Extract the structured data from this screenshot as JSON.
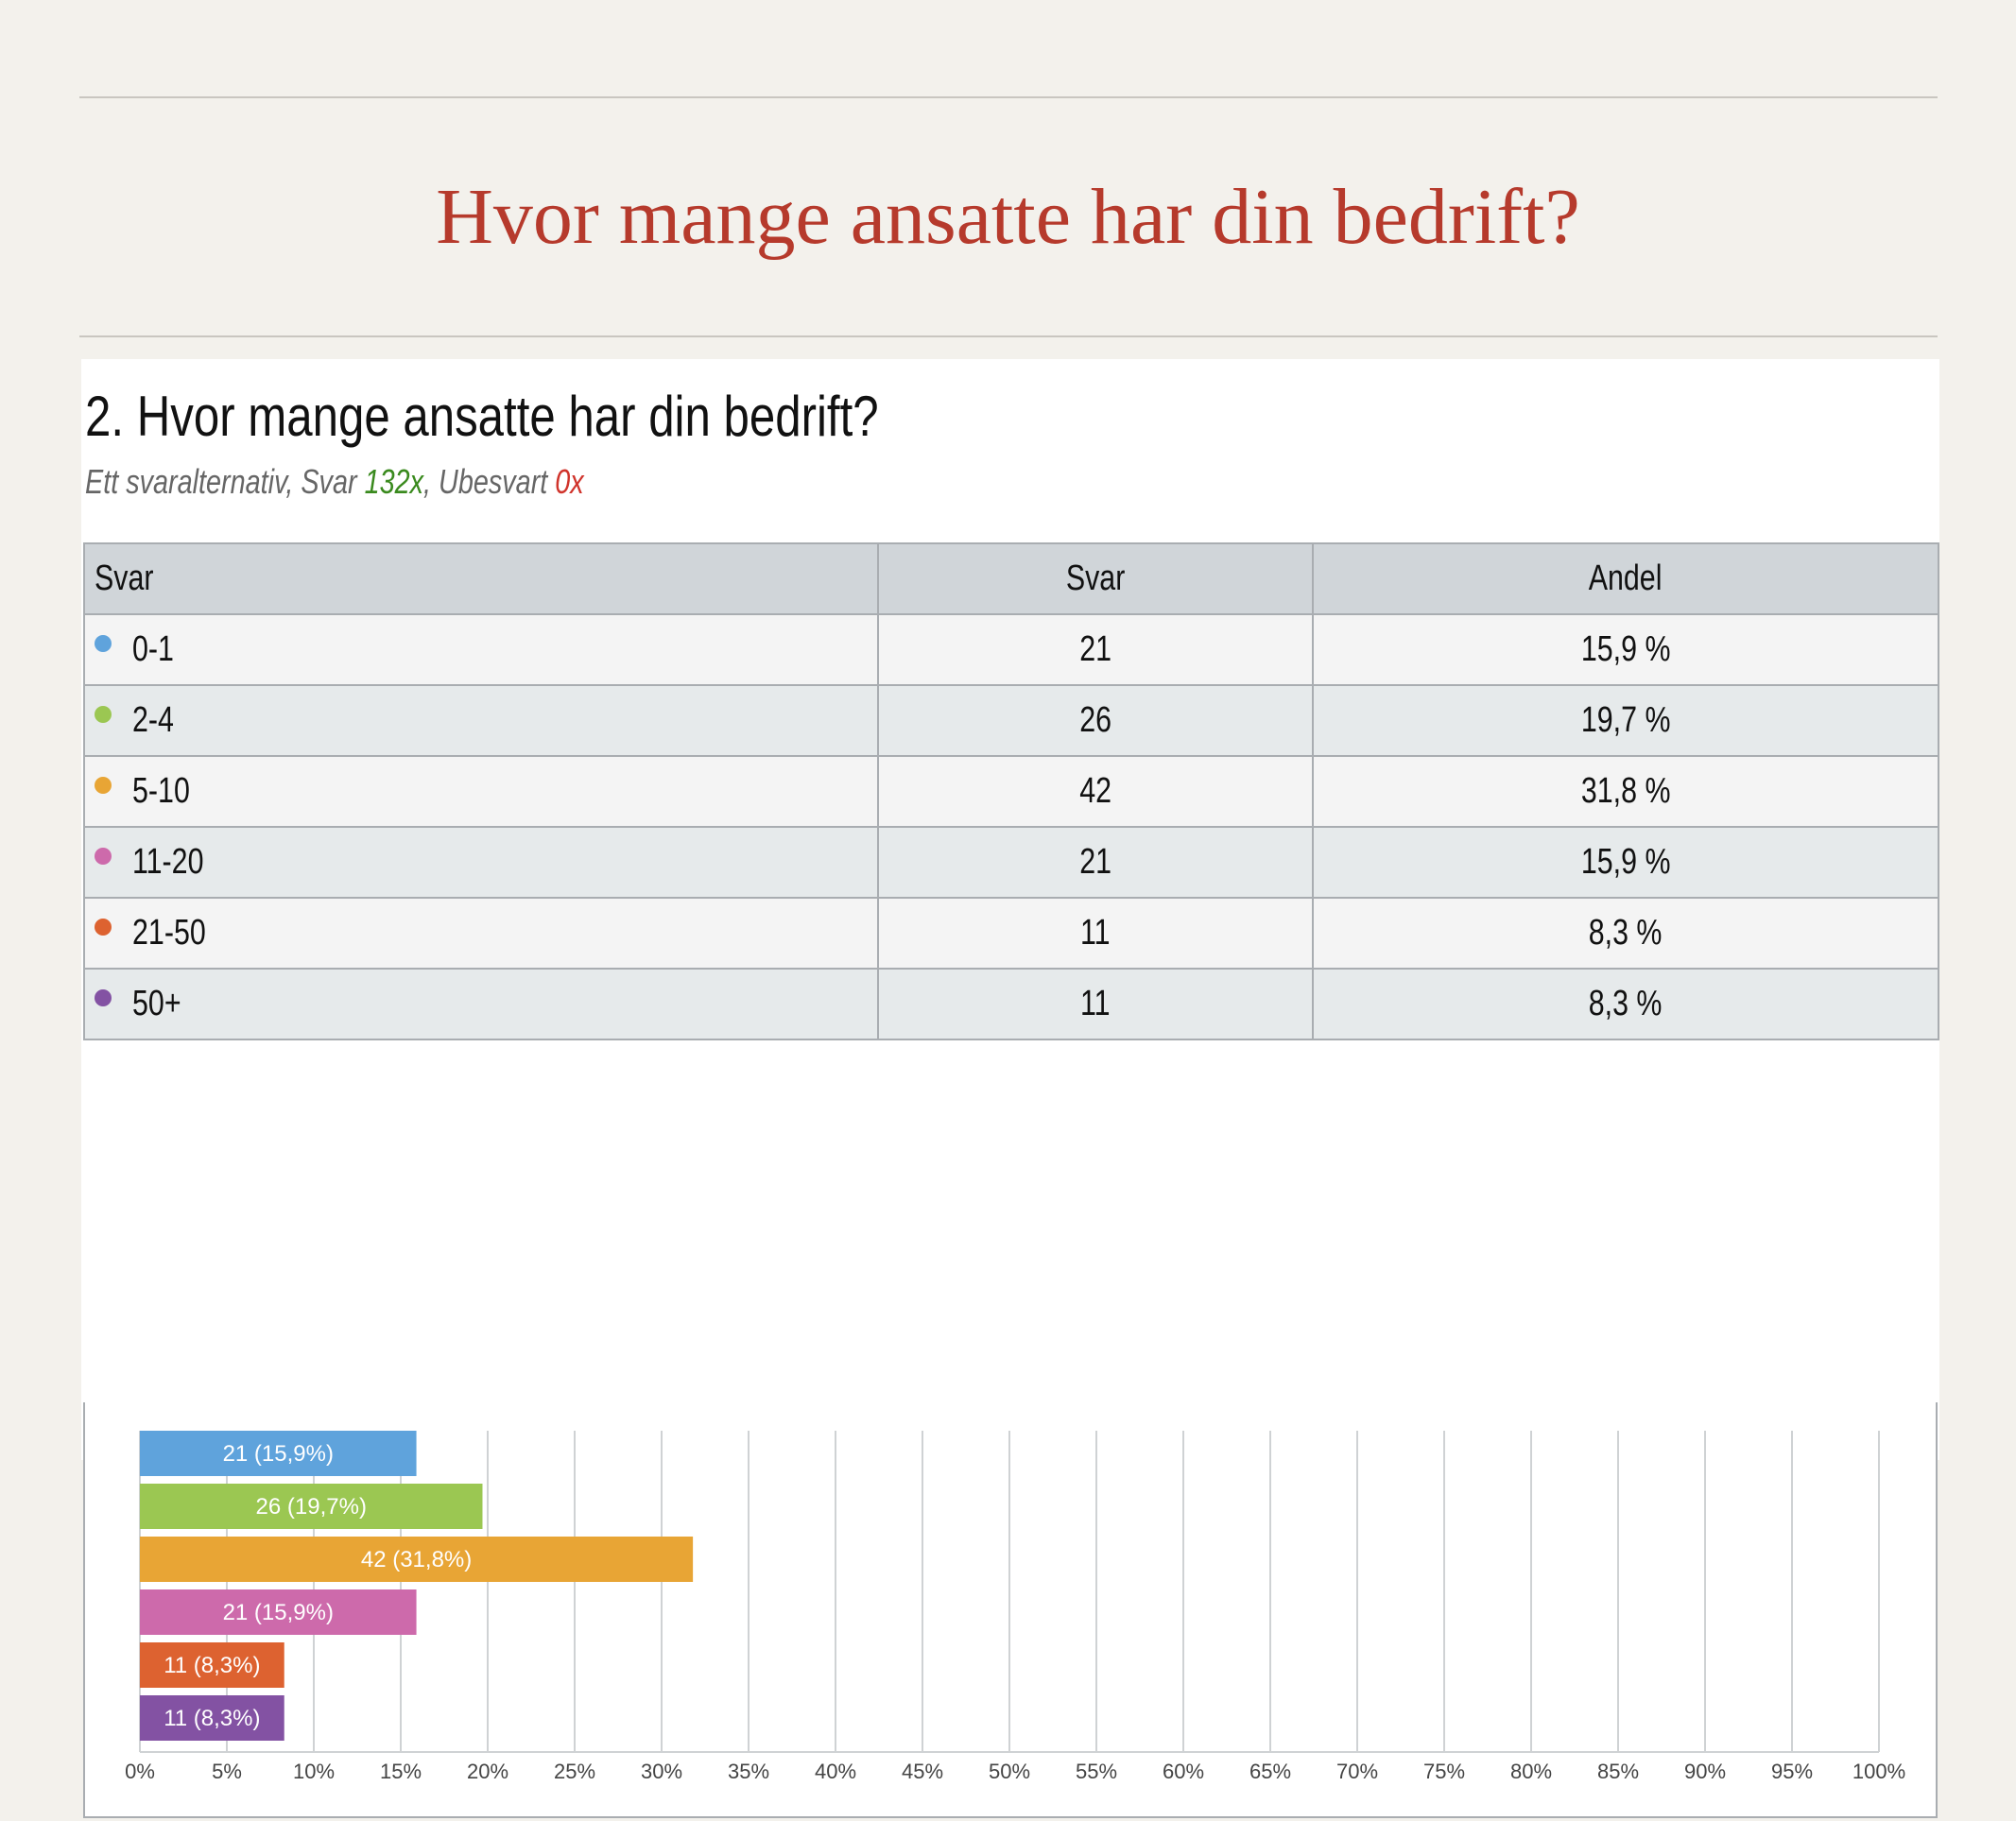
{
  "slide": {
    "title": "Hvor mange ansatte har din bedrift?"
  },
  "question": {
    "title": "2. Hvor mange ansatte har din bedrift?",
    "sub_prefix": "Ett svaralternativ, Svar ",
    "answered": "132x",
    "sub_mid": ", Ubesvart ",
    "unanswered": "0x"
  },
  "table": {
    "headers": [
      "Svar",
      "Svar",
      "Andel"
    ],
    "rows": [
      {
        "label": "0-1",
        "count": "21",
        "share": "15,9 %"
      },
      {
        "label": "2-4",
        "count": "26",
        "share": "19,7 %"
      },
      {
        "label": "5-10",
        "count": "42",
        "share": "31,8 %"
      },
      {
        "label": "11-20",
        "count": "21",
        "share": "15,9 %"
      },
      {
        "label": "21-50",
        "count": "11",
        "share": "8,3 %"
      },
      {
        "label": "50+",
        "count": "11",
        "share": "8,3 %"
      }
    ]
  },
  "chart_data": {
    "type": "bar",
    "orientation": "horizontal",
    "categories": [
      "0-1",
      "2-4",
      "5-10",
      "11-20",
      "21-50",
      "50+"
    ],
    "values": [
      15.9,
      19.7,
      31.8,
      15.9,
      8.3,
      8.3
    ],
    "counts": [
      21,
      26,
      42,
      21,
      11,
      11
    ],
    "data_labels": [
      "21 (15,9%)",
      "26 (19,7%)",
      "42 (31,8%)",
      "21 (15,9%)",
      "11 (8,3%)",
      "11 (8,3%)"
    ],
    "colors": [
      "#5fa3dc",
      "#9bc752",
      "#e8a535",
      "#cd6aab",
      "#dd6230",
      "#8352a3"
    ],
    "xlim": [
      0,
      100
    ],
    "xticks": [
      "0%",
      "5%",
      "10%",
      "15%",
      "20%",
      "25%",
      "30%",
      "35%",
      "40%",
      "45%",
      "50%",
      "55%",
      "60%",
      "65%",
      "70%",
      "75%",
      "80%",
      "85%",
      "90%",
      "95%",
      "100%"
    ],
    "grid": true,
    "title": "",
    "xlabel": "",
    "ylabel": ""
  }
}
